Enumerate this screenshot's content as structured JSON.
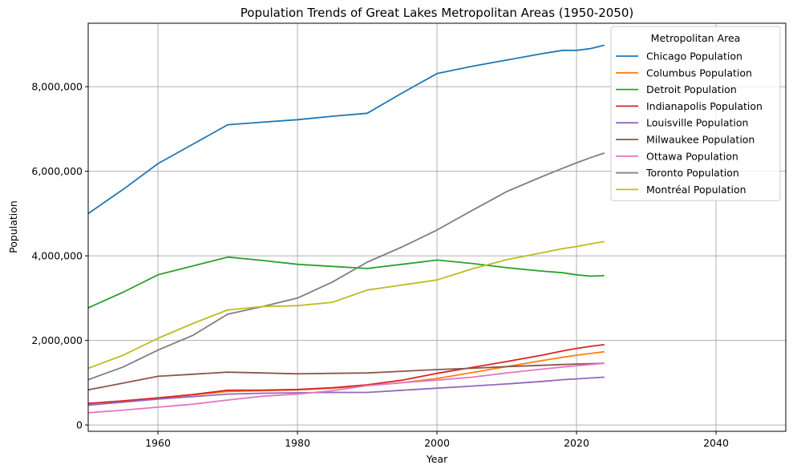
{
  "chart_data": {
    "type": "line",
    "title": "Population Trends of Great Lakes Metropolitan Areas (1950-2050)",
    "xlabel": "Year",
    "ylabel": "Population",
    "xlim": [
      1950,
      2050
    ],
    "ylim": [
      -150000,
      9500000
    ],
    "xticks": [
      1960,
      1980,
      2000,
      2020,
      2040
    ],
    "yticks": [
      0,
      2000000,
      4000000,
      6000000,
      8000000
    ],
    "ytick_labels": [
      "0",
      "2,000,000",
      "4,000,000",
      "6,000,000",
      "8,000,000"
    ],
    "grid": true,
    "legend": {
      "title": "Metropolitan Area",
      "placement": "top-right"
    },
    "series": [
      {
        "name": "Chicago Population",
        "color": "#1f77b4",
        "x": [
          1950,
          1955,
          1960,
          1965,
          1970,
          1975,
          1980,
          1985,
          1990,
          1995,
          2000,
          2005,
          2010,
          2015,
          2018,
          2020,
          2022,
          2024
        ],
        "y": [
          5000000,
          5570000,
          6180000,
          6640000,
          7100000,
          7160000,
          7220000,
          7300000,
          7370000,
          7850000,
          8310000,
          8480000,
          8630000,
          8780000,
          8860000,
          8860000,
          8900000,
          8980000
        ]
      },
      {
        "name": "Columbus Population",
        "color": "#ff7f0e",
        "x": [
          1950,
          1955,
          1960,
          1965,
          1970,
          1975,
          1980,
          1985,
          1990,
          1995,
          2000,
          2005,
          2010,
          2015,
          2018,
          2020,
          2022,
          2024
        ],
        "y": [
          470000,
          540000,
          620000,
          710000,
          790000,
          810000,
          830000,
          870000,
          930000,
          1000000,
          1100000,
          1240000,
          1380000,
          1520000,
          1600000,
          1650000,
          1690000,
          1730000
        ]
      },
      {
        "name": "Detroit Population",
        "color": "#2ca02c",
        "x": [
          1950,
          1955,
          1960,
          1965,
          1970,
          1975,
          1980,
          1985,
          1990,
          1995,
          2000,
          2005,
          2010,
          2015,
          2018,
          2020,
          2022,
          2024
        ],
        "y": [
          2770000,
          3140000,
          3550000,
          3760000,
          3970000,
          3890000,
          3800000,
          3750000,
          3700000,
          3800000,
          3900000,
          3820000,
          3720000,
          3640000,
          3600000,
          3550000,
          3520000,
          3530000
        ]
      },
      {
        "name": "Indianapolis Population",
        "color": "#d62728",
        "x": [
          1950,
          1955,
          1960,
          1965,
          1970,
          1975,
          1980,
          1985,
          1990,
          1995,
          2000,
          2005,
          2010,
          2015,
          2018,
          2020,
          2022,
          2024
        ],
        "y": [
          510000,
          570000,
          640000,
          720000,
          820000,
          825000,
          840000,
          880000,
          950000,
          1060000,
          1220000,
          1360000,
          1500000,
          1650000,
          1750000,
          1810000,
          1860000,
          1900000
        ]
      },
      {
        "name": "Louisville Population",
        "color": "#9467bd",
        "x": [
          1950,
          1955,
          1960,
          1965,
          1970,
          1975,
          1980,
          1985,
          1990,
          1995,
          2000,
          2005,
          2010,
          2015,
          2018,
          2020,
          2022,
          2024
        ],
        "y": [
          470000,
          540000,
          610000,
          670000,
          730000,
          750000,
          760000,
          770000,
          770000,
          820000,
          870000,
          920000,
          970000,
          1030000,
          1070000,
          1090000,
          1110000,
          1130000
        ]
      },
      {
        "name": "Milwaukee Population",
        "color": "#8c564b",
        "x": [
          1950,
          1955,
          1960,
          1965,
          1970,
          1975,
          1980,
          1985,
          1990,
          1995,
          2000,
          2005,
          2010,
          2015,
          2018,
          2020,
          2022,
          2024
        ],
        "y": [
          830000,
          990000,
          1150000,
          1200000,
          1250000,
          1230000,
          1210000,
          1220000,
          1230000,
          1270000,
          1310000,
          1340000,
          1380000,
          1410000,
          1430000,
          1440000,
          1450000,
          1460000
        ]
      },
      {
        "name": "Ottawa Population",
        "color": "#e377c2",
        "x": [
          1950,
          1955,
          1960,
          1965,
          1970,
          1975,
          1980,
          1985,
          1990,
          1995,
          2000,
          2005,
          2010,
          2015,
          2018,
          2020,
          2022,
          2024
        ],
        "y": [
          290000,
          350000,
          420000,
          490000,
          590000,
          680000,
          730000,
          810000,
          930000,
          1000000,
          1060000,
          1130000,
          1230000,
          1320000,
          1370000,
          1400000,
          1430000,
          1460000
        ]
      },
      {
        "name": "Toronto Population",
        "color": "#7f7f7f",
        "x": [
          1950,
          1955,
          1960,
          1965,
          1970,
          1975,
          1980,
          1985,
          1990,
          1995,
          2000,
          2005,
          2010,
          2015,
          2018,
          2020,
          2022,
          2024
        ],
        "y": [
          1070000,
          1370000,
          1770000,
          2120000,
          2620000,
          2800000,
          3000000,
          3380000,
          3850000,
          4210000,
          4610000,
          5070000,
          5520000,
          5870000,
          6070000,
          6200000,
          6320000,
          6430000
        ]
      },
      {
        "name": "Montréal Population",
        "color": "#bcbd22",
        "x": [
          1950,
          1955,
          1960,
          1965,
          1970,
          1975,
          1980,
          1985,
          1990,
          1995,
          2000,
          2005,
          2010,
          2015,
          2018,
          2020,
          2022,
          2024
        ],
        "y": [
          1340000,
          1650000,
          2050000,
          2400000,
          2720000,
          2800000,
          2820000,
          2900000,
          3190000,
          3310000,
          3430000,
          3690000,
          3910000,
          4070000,
          4170000,
          4220000,
          4280000,
          4340000
        ]
      }
    ]
  }
}
